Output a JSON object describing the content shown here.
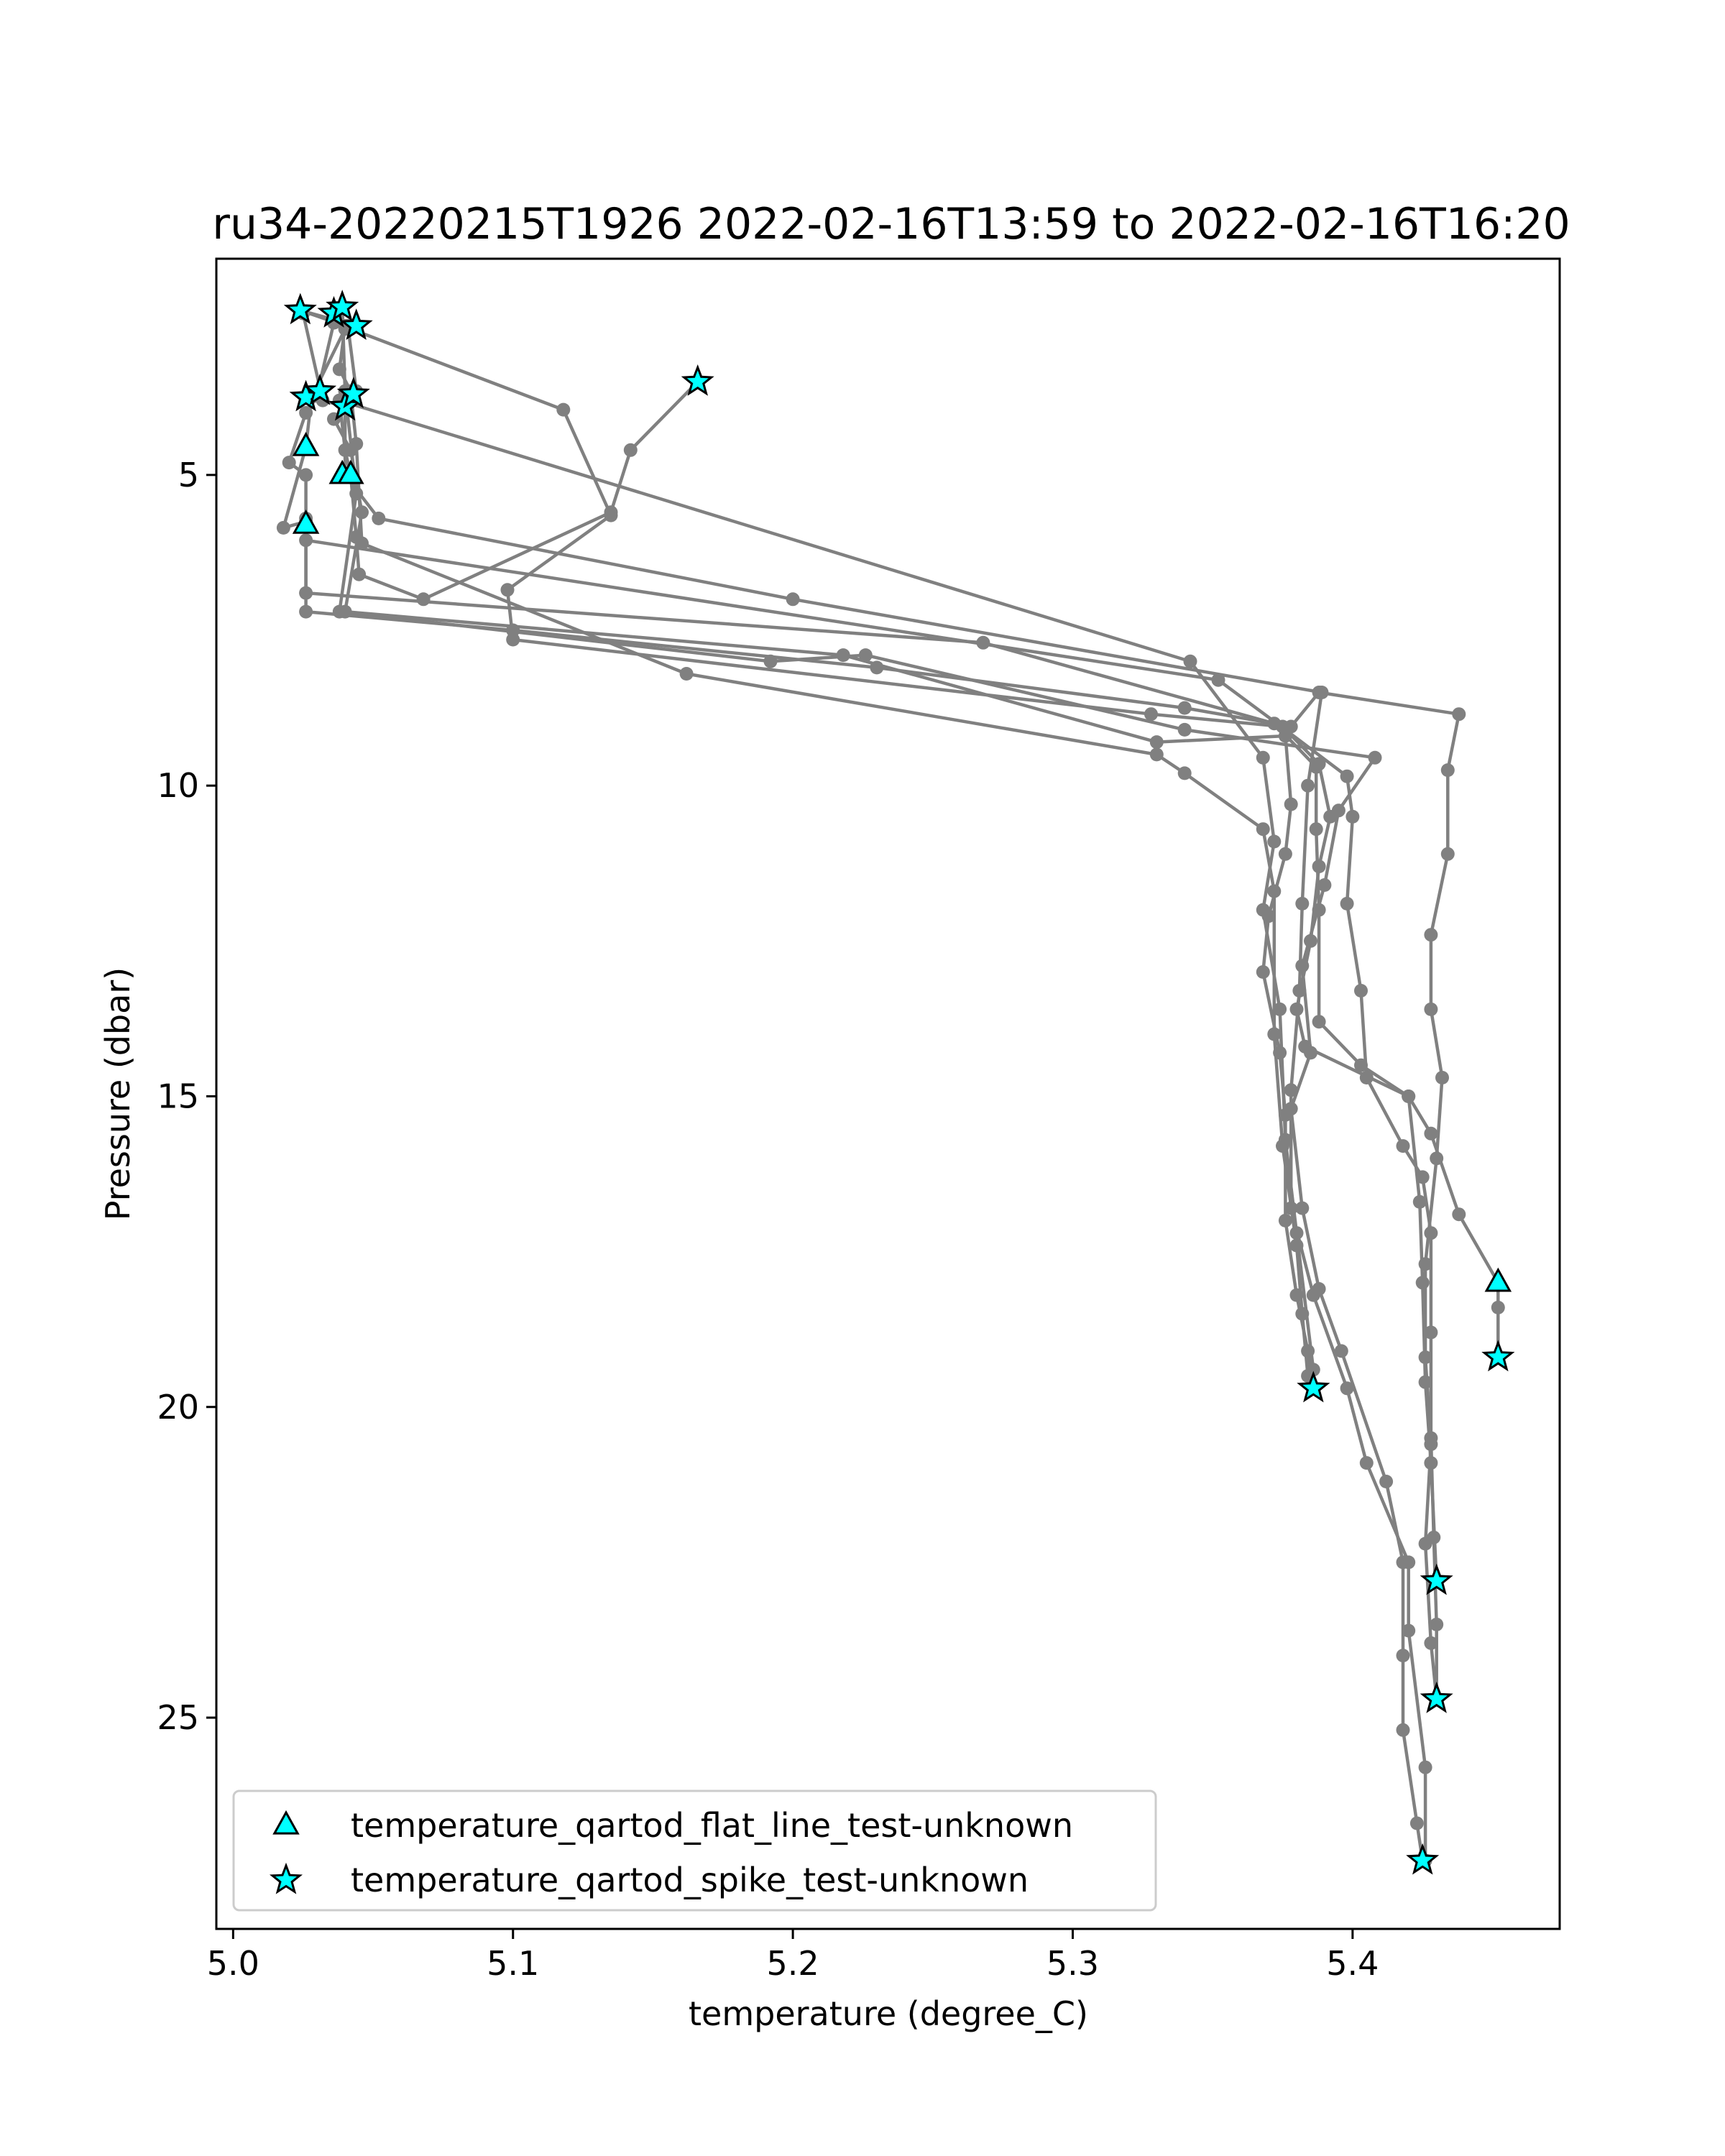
{
  "chart_data": {
    "type": "scatter",
    "title": "ru34-20220215T1926 2022-02-16T13:59 to 2022-02-16T16:20",
    "xlabel": "temperature (degree_C)",
    "ylabel": "Pressure (dbar)",
    "xlim": [
      4.994,
      5.474
    ],
    "ylim": [
      28.4,
      1.52
    ],
    "y_inverted": true,
    "xticks": [
      5.0,
      5.1,
      5.2,
      5.3,
      5.4
    ],
    "xtick_labels": [
      "5.0",
      "5.1",
      "5.2",
      "5.3",
      "5.4"
    ],
    "yticks": [
      5,
      10,
      15,
      20,
      25
    ],
    "ytick_labels": [
      "5",
      "10",
      "15",
      "20",
      "25"
    ],
    "grid": false,
    "legend_position": "lower-left",
    "colors": {
      "profile": "#808080",
      "flag_fill": "#00ffff",
      "flag_edge": "#000000"
    },
    "profiles": [
      {
        "points": [
          [
            5.042,
            2.65
          ],
          [
            5.118,
            3.95
          ],
          [
            5.135,
            5.65
          ],
          [
            5.098,
            6.85
          ],
          [
            5.1,
            7.65
          ],
          [
            5.328,
            8.85
          ],
          [
            5.375,
            9.05
          ],
          [
            5.388,
            9.65
          ],
          [
            5.392,
            10.5
          ],
          [
            5.388,
            11.3
          ],
          [
            5.385,
            12.5
          ],
          [
            5.38,
            13.6
          ],
          [
            5.383,
            14.2
          ],
          [
            5.42,
            15.0
          ],
          [
            5.424,
            16.7
          ],
          [
            5.425,
            18.0
          ],
          [
            5.426,
            19.6
          ],
          [
            5.428,
            20.9
          ],
          [
            5.43,
            22.8
          ]
        ]
      },
      {
        "points": [
          [
            5.166,
            3.5
          ],
          [
            5.142,
            4.6
          ],
          [
            5.135,
            5.6
          ],
          [
            5.068,
            7.0
          ],
          [
            5.045,
            6.6
          ],
          [
            5.044,
            6.0
          ],
          [
            5.042,
            5.0
          ],
          [
            5.04,
            4.6
          ],
          [
            5.038,
            3.8
          ],
          [
            5.342,
            8.0
          ],
          [
            5.368,
            9.55
          ],
          [
            5.372,
            10.9
          ],
          [
            5.368,
            12.0
          ],
          [
            5.374,
            13.6
          ],
          [
            5.376,
            15.7
          ],
          [
            5.38,
            17.2
          ],
          [
            5.386,
            19.4
          ],
          [
            5.386,
            19.7
          ]
        ]
      },
      {
        "points": [
          [
            5.025,
            2.4
          ],
          [
            5.032,
            3.8
          ],
          [
            5.04,
            3.9
          ],
          [
            5.04,
            5.0
          ],
          [
            5.052,
            5.7
          ],
          [
            5.2,
            7.0
          ],
          [
            5.389,
            8.5
          ],
          [
            5.384,
            10.0
          ],
          [
            5.382,
            11.9
          ],
          [
            5.381,
            13.3
          ],
          [
            5.378,
            14.9
          ],
          [
            5.378,
            16.8
          ],
          [
            5.386,
            18.2
          ],
          [
            5.398,
            19.7
          ],
          [
            5.405,
            20.9
          ],
          [
            5.42,
            22.5
          ],
          [
            5.42,
            23.6
          ],
          [
            5.426,
            25.8
          ],
          [
            5.426,
            27.3
          ]
        ]
      },
      {
        "points": [
          [
            5.04,
            2.65
          ],
          [
            5.028,
            3.75
          ],
          [
            5.026,
            4.55
          ],
          [
            5.018,
            5.85
          ],
          [
            5.026,
            5.75
          ],
          [
            5.026,
            6.05
          ],
          [
            5.352,
            8.3
          ],
          [
            5.376,
            9.1
          ],
          [
            5.398,
            9.85
          ],
          [
            5.4,
            10.5
          ],
          [
            5.398,
            11.9
          ],
          [
            5.403,
            13.3
          ],
          [
            5.405,
            14.7
          ],
          [
            5.418,
            15.8
          ],
          [
            5.425,
            16.3
          ],
          [
            5.428,
            17.2
          ],
          [
            5.428,
            18.8
          ],
          [
            5.428,
            20.5
          ],
          [
            5.429,
            22.1
          ],
          [
            5.43,
            23.5
          ],
          [
            5.43,
            24.7
          ]
        ]
      },
      {
        "points": [
          [
            5.036,
            2.55
          ],
          [
            5.03,
            3.7
          ],
          [
            5.026,
            4.0
          ],
          [
            5.02,
            4.8
          ],
          [
            5.026,
            5.0
          ],
          [
            5.026,
            5.8
          ],
          [
            5.026,
            6.9
          ],
          [
            5.268,
            7.7
          ],
          [
            5.372,
            9.0
          ],
          [
            5.387,
            9.7
          ],
          [
            5.387,
            10.7
          ],
          [
            5.388,
            12.0
          ],
          [
            5.388,
            13.8
          ],
          [
            5.403,
            14.5
          ],
          [
            5.42,
            15.0
          ],
          [
            5.428,
            15.6
          ],
          [
            5.438,
            16.9
          ],
          [
            5.452,
            18.0
          ],
          [
            5.452,
            18.4
          ],
          [
            5.452,
            19.2
          ]
        ]
      },
      {
        "points": [
          [
            5.039,
            2.3
          ],
          [
            5.04,
            3.65
          ],
          [
            5.044,
            5.3
          ],
          [
            5.038,
            7.2
          ],
          [
            5.192,
            8.0
          ],
          [
            5.226,
            7.9
          ],
          [
            5.34,
            9.1
          ],
          [
            5.408,
            9.55
          ],
          [
            5.395,
            10.4
          ],
          [
            5.39,
            11.6
          ],
          [
            5.382,
            12.9
          ],
          [
            5.385,
            14.3
          ],
          [
            5.378,
            15.2
          ],
          [
            5.382,
            16.8
          ],
          [
            5.388,
            18.1
          ],
          [
            5.396,
            19.1
          ],
          [
            5.412,
            21.2
          ],
          [
            5.418,
            22.5
          ],
          [
            5.418,
            24.0
          ],
          [
            5.418,
            25.2
          ],
          [
            5.423,
            26.7
          ],
          [
            5.425,
            27.3
          ]
        ]
      },
      {
        "points": [
          [
            5.044,
            2.6
          ],
          [
            5.024,
            2.35
          ],
          [
            5.04,
            2.6
          ],
          [
            5.038,
            3.3
          ],
          [
            5.042,
            3.65
          ],
          [
            5.044,
            4.5
          ],
          [
            5.046,
            6.1
          ],
          [
            5.162,
            8.2
          ],
          [
            5.33,
            9.5
          ],
          [
            5.34,
            9.8
          ],
          [
            5.368,
            10.7
          ],
          [
            5.372,
            11.7
          ],
          [
            5.372,
            14.0
          ],
          [
            5.375,
            15.8
          ],
          [
            5.38,
            17.4
          ],
          [
            5.382,
            18.5
          ],
          [
            5.384,
            19.5
          ],
          [
            5.386,
            19.7
          ]
        ]
      },
      {
        "points": [
          [
            5.041,
            2.6
          ],
          [
            5.044,
            3.65
          ],
          [
            5.036,
            4.1
          ],
          [
            5.042,
            4.6
          ],
          [
            5.046,
            5.6
          ],
          [
            5.04,
            7.2
          ],
          [
            5.218,
            7.9
          ],
          [
            5.33,
            9.3
          ],
          [
            5.376,
            9.2
          ],
          [
            5.378,
            10.3
          ],
          [
            5.376,
            11.1
          ],
          [
            5.37,
            12.1
          ],
          [
            5.368,
            13.0
          ],
          [
            5.374,
            14.3
          ],
          [
            5.376,
            15.3
          ],
          [
            5.376,
            17.0
          ],
          [
            5.38,
            18.2
          ],
          [
            5.384,
            19.1
          ],
          [
            5.386,
            19.7
          ]
        ]
      },
      {
        "points": [
          [
            5.43,
            24.7
          ],
          [
            5.428,
            23.8
          ],
          [
            5.426,
            22.2
          ],
          [
            5.428,
            20.6
          ],
          [
            5.426,
            19.2
          ],
          [
            5.426,
            17.7
          ],
          [
            5.43,
            16.0
          ],
          [
            5.432,
            14.7
          ],
          [
            5.428,
            13.6
          ],
          [
            5.428,
            12.4
          ],
          [
            5.434,
            11.1
          ],
          [
            5.434,
            9.75
          ],
          [
            5.438,
            8.85
          ],
          [
            5.388,
            8.5
          ],
          [
            5.378,
            9.05
          ],
          [
            5.34,
            8.75
          ],
          [
            5.23,
            8.1
          ],
          [
            5.1,
            7.5
          ],
          [
            5.026,
            7.2
          ],
          [
            5.026,
            5.7
          ]
        ]
      }
    ],
    "flag_series": [
      {
        "name": "temperature_qartod_flat_line_test-unknown",
        "marker": "triangle",
        "points": [
          [
            5.026,
            4.55
          ],
          [
            5.039,
            5.0
          ],
          [
            5.042,
            5.0
          ],
          [
            5.026,
            5.8
          ],
          [
            5.452,
            18.0
          ]
        ]
      },
      {
        "name": "temperature_qartod_spike_test-unknown",
        "marker": "star",
        "points": [
          [
            5.024,
            2.35
          ],
          [
            5.036,
            2.4
          ],
          [
            5.039,
            2.3
          ],
          [
            5.044,
            2.6
          ],
          [
            5.026,
            3.75
          ],
          [
            5.031,
            3.65
          ],
          [
            5.04,
            3.9
          ],
          [
            5.043,
            3.7
          ],
          [
            5.166,
            3.5
          ],
          [
            5.386,
            19.7
          ],
          [
            5.452,
            19.2
          ],
          [
            5.43,
            22.8
          ],
          [
            5.43,
            24.7
          ],
          [
            5.425,
            27.3
          ]
        ]
      }
    ]
  }
}
